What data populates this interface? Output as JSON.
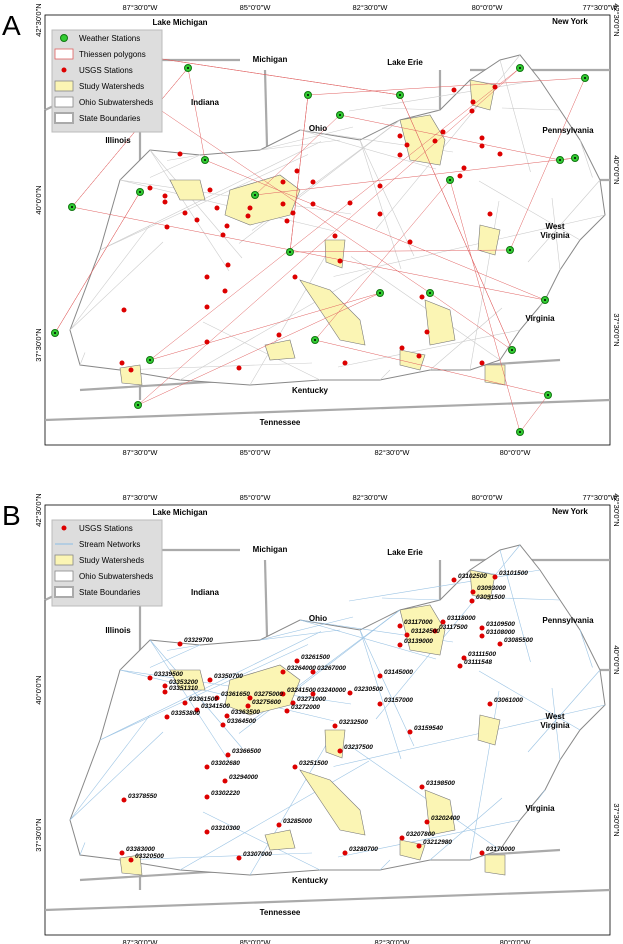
{
  "panel_a": {
    "label": "A",
    "top_ticks": [
      "87°30'0\"W",
      "85°0'0\"W",
      "82°30'0\"W",
      "80°0'0\"W",
      "77°30'0\"W"
    ],
    "bottom_ticks": [
      "87°30'0\"W",
      "85°0'0\"W",
      "82°30'0\"W",
      "80°0'0\"W"
    ],
    "left_ticks": [
      "42°30'0\"N",
      "40°0'0\"N",
      "37°30'0\"N"
    ],
    "right_ticks": [
      "42°30'0\"N",
      "40°0'0\"N",
      "37°30'0\"N"
    ],
    "regions": [
      "Lake Michigan",
      "Michigan",
      "Lake Erie",
      "New York",
      "Indiana",
      "Ohio",
      "Pennsylvania",
      "Illinois",
      "West Virginia",
      "Virginia",
      "Kentucky",
      "Tennessee"
    ],
    "legend": [
      "Weather Stations",
      "Thiessen polygons",
      "USGS Stations",
      "Study Watersheds",
      "Ohio Subwatersheds",
      "State Boundaries"
    ]
  },
  "panel_b": {
    "label": "B",
    "top_ticks": [
      "87°30'0\"W",
      "85°0'0\"W",
      "82°30'0\"W",
      "80°0'0\"W",
      "77°30'0\"W"
    ],
    "bottom_ticks": [
      "87°30'0\"W",
      "85°0'0\"W",
      "82°30'0\"W",
      "80°0'0\"W"
    ],
    "left_ticks": [
      "42°30'0\"N",
      "40°0'0\"N",
      "37°30'0\"N"
    ],
    "right_ticks": [
      "42°30'0\"N",
      "40°0'0\"N",
      "37°30'0\"N"
    ],
    "regions": [
      "Lake Michigan",
      "Michigan",
      "Lake Erie",
      "New York",
      "Indiana",
      "Ohio",
      "Pennsylvania",
      "Illinois",
      "West Virginia",
      "Virginia",
      "Kentucky",
      "Tennessee"
    ],
    "legend": [
      "USGS Stations",
      "Stream Networks",
      "Study Watersheds",
      "Ohio Subwatersheds",
      "State Boundaries"
    ],
    "station_labels": [
      "03102500",
      "03101500",
      "03093000",
      "03091500",
      "03118000",
      "03117000",
      "03117500",
      "03109500",
      "03124500",
      "03108000",
      "03139000",
      "03085500",
      "03111500",
      "03111548",
      "03329700",
      "03261500",
      "03339500",
      "03264000",
      "03267000",
      "03145000",
      "03353200",
      "03350700",
      "03351310",
      "03361650",
      "03240000",
      "03241500",
      "03230500",
      "03157000",
      "03361500",
      "03275000",
      "03271000",
      "03061000",
      "03275600",
      "03341500",
      "03272000",
      "03353800",
      "03363500",
      "03364500",
      "03232500",
      "03159540",
      "03237500",
      "03366500",
      "03302680",
      "03251500",
      "03198500",
      "03294000",
      "03378550",
      "03302220",
      "03202400",
      "03285000",
      "03310300",
      "03207800",
      "03212980",
      "03383000",
      "03280700",
      "03170000",
      "03320500",
      "03307000"
    ]
  }
}
